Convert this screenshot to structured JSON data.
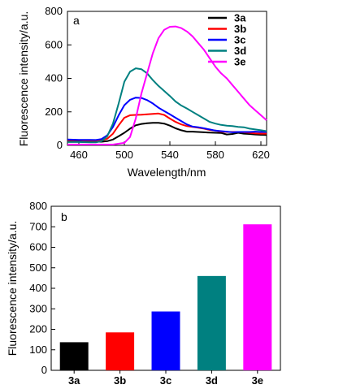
{
  "chart_data": [
    {
      "type": "line",
      "panel_label": "a",
      "xlabel": "Wavelength/nm",
      "ylabel": "Fluorescence intensity/a.u.",
      "xlim": [
        450,
        625
      ],
      "ylim": [
        0,
        800
      ],
      "xticks": [
        460,
        500,
        540,
        580,
        620
      ],
      "yticks": [
        0,
        200,
        400,
        600,
        800
      ],
      "legend_position": "top-right",
      "grid": false,
      "series": [
        {
          "name": "3a",
          "color": "#000000",
          "x": [
            450,
            460,
            470,
            475,
            480,
            485,
            490,
            495,
            500,
            505,
            510,
            515,
            520,
            525,
            530,
            535,
            540,
            545,
            550,
            555,
            560,
            565,
            570,
            575,
            580,
            585,
            590,
            595,
            600,
            605,
            610,
            615,
            620,
            625
          ],
          "y": [
            25,
            25,
            25,
            22,
            22,
            25,
            35,
            55,
            75,
            100,
            120,
            128,
            132,
            135,
            135,
            130,
            118,
            102,
            90,
            82,
            82,
            80,
            78,
            76,
            75,
            74,
            65,
            68,
            75,
            70,
            68,
            65,
            63,
            62
          ]
        },
        {
          "name": "3b",
          "color": "#ff0000",
          "x": [
            450,
            460,
            470,
            475,
            480,
            485,
            490,
            495,
            500,
            505,
            510,
            515,
            520,
            525,
            530,
            535,
            540,
            545,
            550,
            555,
            560,
            565,
            570,
            575,
            580,
            585,
            590,
            595,
            600,
            605,
            610,
            615,
            620,
            625
          ],
          "y": [
            30,
            30,
            28,
            28,
            30,
            40,
            70,
            120,
            165,
            180,
            182,
            183,
            185,
            188,
            190,
            182,
            160,
            140,
            125,
            115,
            110,
            105,
            100,
            92,
            88,
            82,
            80,
            80,
            80,
            78,
            75,
            72,
            70,
            70
          ]
        },
        {
          "name": "3c",
          "color": "#0000ff",
          "x": [
            450,
            460,
            470,
            475,
            480,
            485,
            490,
            495,
            500,
            505,
            510,
            515,
            520,
            525,
            530,
            535,
            540,
            545,
            550,
            555,
            560,
            565,
            570,
            575,
            580,
            585,
            590,
            595,
            600,
            605,
            610,
            615,
            620,
            625
          ],
          "y": [
            35,
            33,
            33,
            32,
            38,
            60,
            110,
            180,
            240,
            272,
            285,
            283,
            270,
            250,
            225,
            205,
            185,
            165,
            145,
            125,
            112,
            108,
            102,
            95,
            88,
            85,
            82,
            78,
            80,
            80,
            80,
            82,
            80,
            80
          ]
        },
        {
          "name": "3d",
          "color": "#008080",
          "x": [
            450,
            460,
            470,
            475,
            480,
            485,
            490,
            495,
            500,
            505,
            510,
            515,
            520,
            525,
            530,
            535,
            540,
            545,
            550,
            555,
            560,
            565,
            570,
            575,
            580,
            585,
            590,
            595,
            600,
            605,
            610,
            615,
            620,
            625
          ],
          "y": [
            20,
            20,
            18,
            18,
            25,
            55,
            130,
            250,
            380,
            440,
            460,
            455,
            430,
            390,
            355,
            325,
            295,
            262,
            238,
            220,
            200,
            180,
            160,
            140,
            130,
            122,
            118,
            115,
            110,
            108,
            100,
            95,
            90,
            85
          ]
        },
        {
          "name": "3e",
          "color": "#ff00ff",
          "x": [
            450,
            460,
            470,
            480,
            490,
            500,
            505,
            510,
            515,
            520,
            525,
            530,
            535,
            540,
            545,
            550,
            555,
            560,
            565,
            570,
            575,
            580,
            585,
            590,
            595,
            600,
            605,
            610,
            615,
            620,
            625
          ],
          "y": [
            5,
            5,
            5,
            5,
            5,
            15,
            50,
            160,
            310,
            430,
            550,
            640,
            690,
            708,
            710,
            700,
            680,
            650,
            610,
            570,
            520,
            470,
            430,
            400,
            360,
            320,
            280,
            240,
            210,
            180,
            150
          ]
        }
      ]
    },
    {
      "type": "bar",
      "panel_label": "b",
      "ylabel": "Fluorescence intensity/a.u.",
      "categories": [
        "3a",
        "3b",
        "3c",
        "3d",
        "3e"
      ],
      "values": [
        137,
        185,
        287,
        460,
        712
      ],
      "colors": [
        "#000000",
        "#ff0000",
        "#0000ff",
        "#008080",
        "#ff00ff"
      ],
      "ylim": [
        0,
        800
      ],
      "yticks": [
        0,
        100,
        200,
        300,
        400,
        500,
        600,
        700,
        800
      ],
      "grid": false
    }
  ]
}
